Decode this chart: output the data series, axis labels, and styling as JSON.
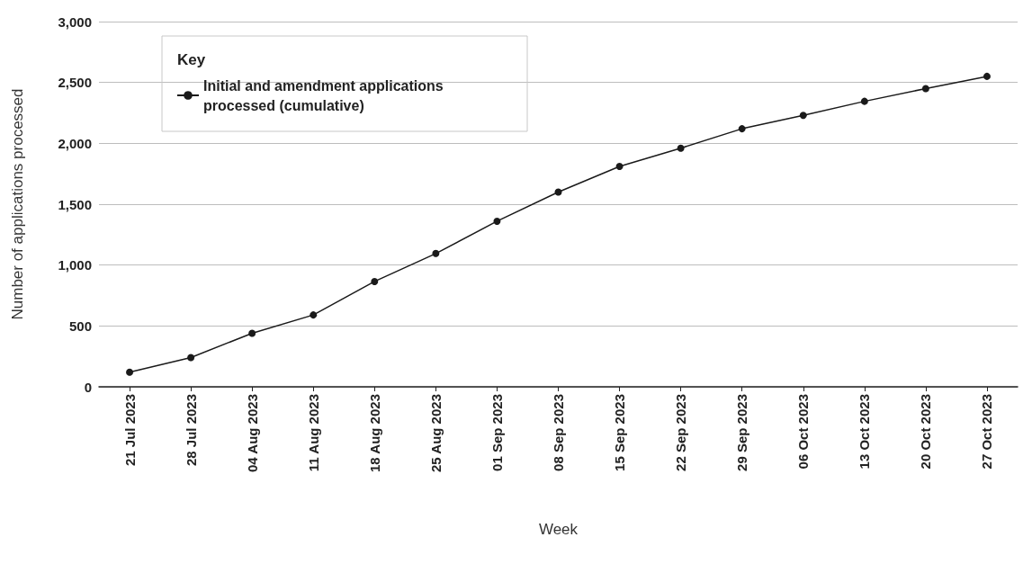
{
  "chart_data": {
    "type": "line",
    "xlabel": "Week",
    "ylabel": "Number of applications processed",
    "legend_title": "Key",
    "categories": [
      "21 Jul 2023",
      "28 Jul 2023",
      "04 Aug 2023",
      "11 Aug 2023",
      "18 Aug 2023",
      "25 Aug 2023",
      "01 Sep 2023",
      "08 Sep 2023",
      "15 Sep 2023",
      "22 Sep 2023",
      "29 Sep 2023",
      "06 Oct 2023",
      "13 Oct 2023",
      "20 Oct 2023",
      "27 Oct 2023"
    ],
    "series": [
      {
        "name": "Initial and amendment applications processed (cumulative)",
        "color": "#1a1a1a",
        "values": [
          120,
          240,
          440,
          590,
          865,
          1095,
          1360,
          1600,
          1810,
          1960,
          2120,
          2230,
          2345,
          2450,
          2550
        ]
      }
    ],
    "ylim": [
      0,
      3000
    ],
    "yticks": [
      0,
      500,
      {
        "value": 1000,
        "label": "1,000"
      },
      {
        "value": 1500,
        "label": "1,500"
      },
      {
        "value": 2000,
        "label": "2,000"
      },
      {
        "value": 2500,
        "label": "2,500"
      },
      {
        "value": 3000,
        "label": "3,000"
      }
    ],
    "grid": "y",
    "legend": "top left",
    "marker": "circle",
    "line_style": "solid"
  }
}
